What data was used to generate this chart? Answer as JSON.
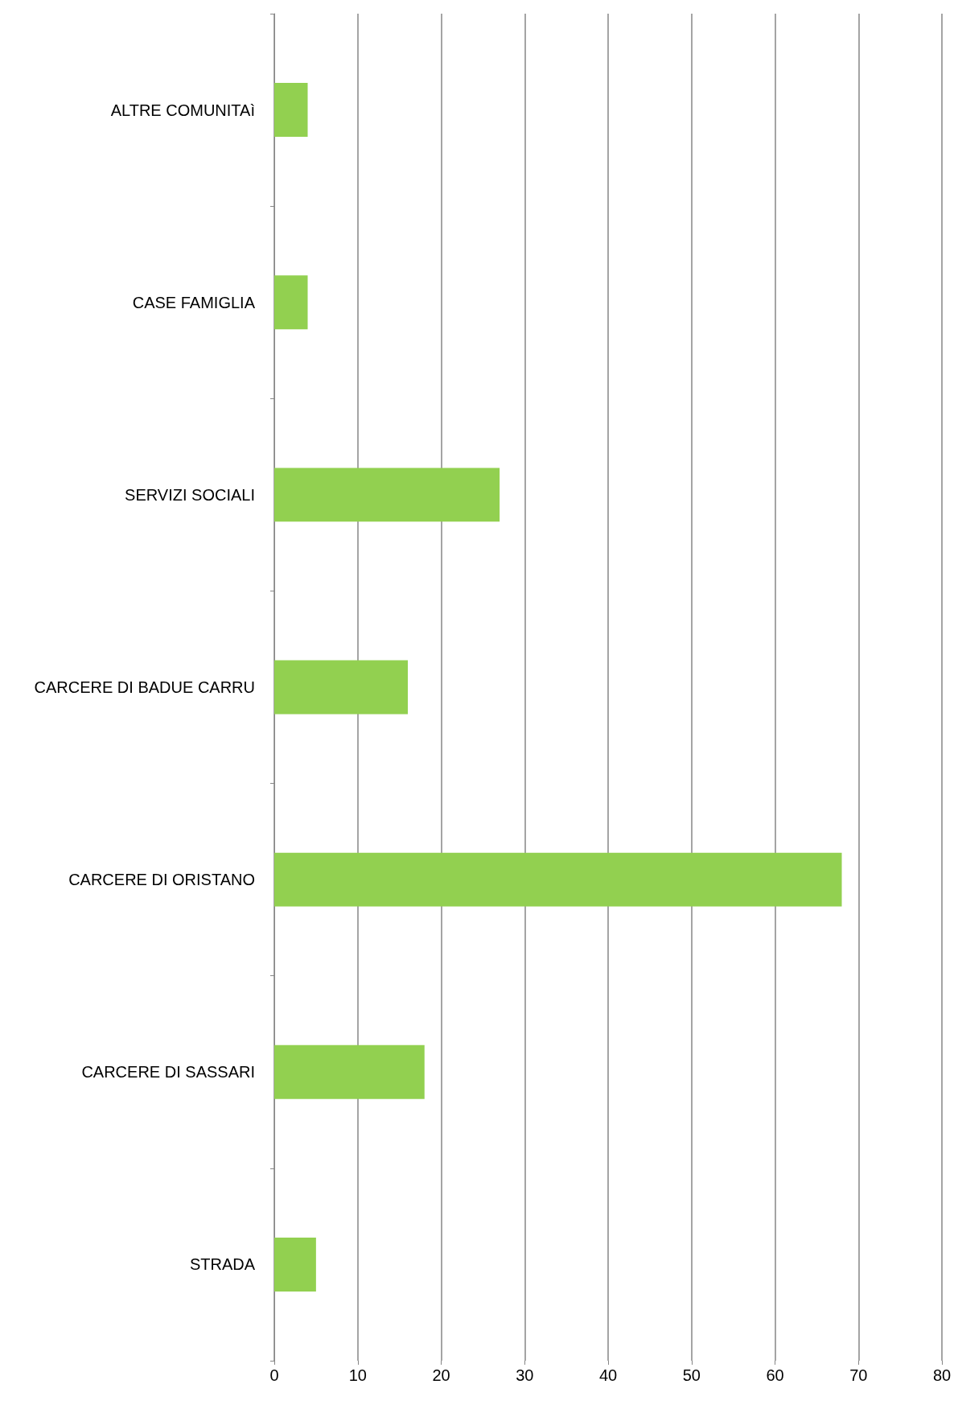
{
  "chart_data": {
    "type": "bar",
    "orientation": "horizontal",
    "categories": [
      "ALTRE COMUNITAì",
      "CASE FAMIGLIA",
      "SERVIZI SOCIALI",
      "CARCERE DI BADUE CARRU",
      "CARCERE DI ORISTANO",
      "CARCERE DI SASSARI",
      "STRADA"
    ],
    "values": [
      4,
      4,
      27,
      16,
      68,
      18,
      5
    ],
    "color": "#92d050",
    "xlim": [
      0,
      80
    ],
    "xticks": [
      0,
      10,
      20,
      30,
      40,
      50,
      60,
      70,
      80
    ],
    "grid": "x"
  }
}
